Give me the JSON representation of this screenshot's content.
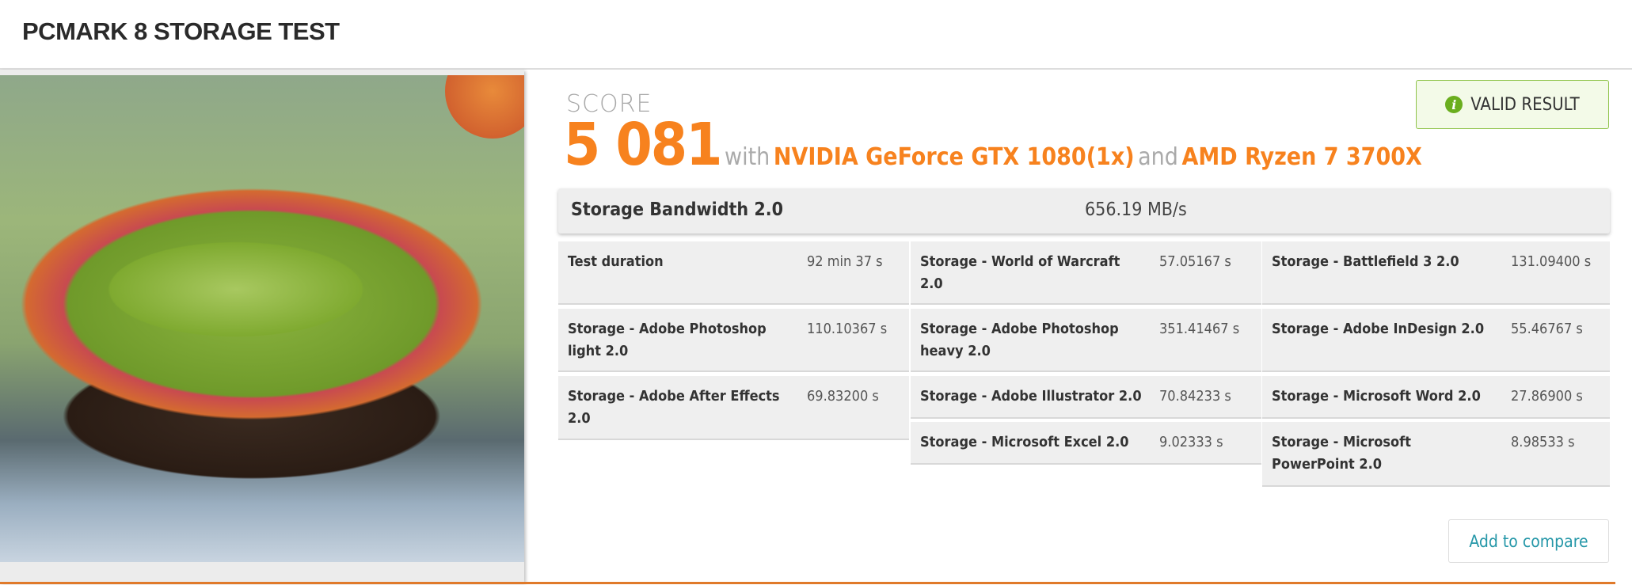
{
  "header": {
    "title": "PCMARK 8 STORAGE TEST"
  },
  "score": {
    "label": "SCORE",
    "value": "5 081",
    "with_text": "with",
    "gpu": "NVIDIA GeForce GTX 1080(1x)",
    "and_text": "and",
    "cpu": "AMD Ryzen 7 3700X"
  },
  "badge": {
    "label": "VALID RESULT",
    "icon": "info-icon",
    "color": "#8fc34a"
  },
  "bandwidth": {
    "label": "Storage Bandwidth 2.0",
    "value": "656.19 MB/s"
  },
  "details": [
    {
      "label": "Test duration",
      "value": "92 min 37 s"
    },
    {
      "label": "Storage - World of Warcraft 2.0",
      "value": "57.05167 s"
    },
    {
      "label": "Storage - Battlefield 3 2.0",
      "value": "131.09400 s"
    },
    {
      "label": "Storage - Adobe Photoshop light 2.0",
      "value": "110.10367 s"
    },
    {
      "label": "Storage - Adobe Photoshop heavy 2.0",
      "value": "351.41467 s"
    },
    {
      "label": "Storage - Adobe InDesign 2.0",
      "value": "55.46767 s"
    },
    {
      "label": "Storage - Adobe After Effects 2.0",
      "value": "69.83200 s"
    },
    {
      "label": "Storage - Adobe Illustrator 2.0",
      "value": "70.84233 s"
    },
    {
      "label": "Storage - Microsoft Word 2.0",
      "value": "27.86900 s"
    },
    {
      "label": "Storage - Microsoft Excel 2.0",
      "value": "9.02333 s"
    },
    {
      "label": "Storage - Microsoft PowerPoint 2.0",
      "value": "8.98533 s"
    }
  ],
  "actions": {
    "compare_label": "Add to compare"
  },
  "colors": {
    "accent": "#f7821e",
    "link": "#2597a8"
  }
}
